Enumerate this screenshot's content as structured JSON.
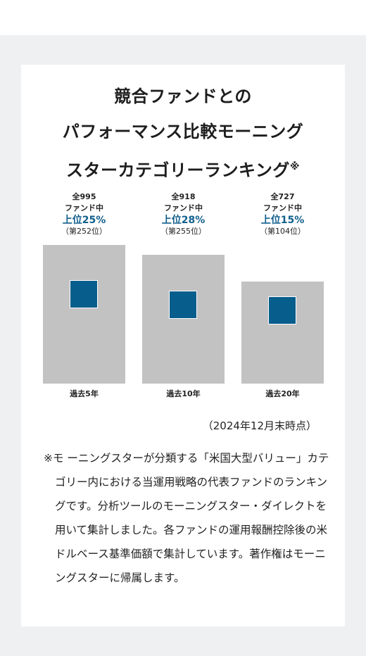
{
  "title_lines": [
    "競合ファンドとの",
    "パフォーマンス比較モーニング",
    "スターカテゴリーランキング"
  ],
  "title_mark": "※",
  "chart_data": {
    "type": "bar",
    "categories": [
      "過去5年",
      "過去10年",
      "過去20年"
    ],
    "headers": [
      {
        "total": "全995",
        "sub": "ファンド中",
        "rank": "上位25%",
        "position": "（第252位）"
      },
      {
        "total": "全918",
        "sub": "ファンド中",
        "rank": "上位28%",
        "position": "（第255位）"
      },
      {
        "total": "全727",
        "sub": "ファンド中",
        "rank": "上位15%",
        "position": "（第104位）"
      }
    ],
    "fund_totals": [
      995,
      918,
      727
    ],
    "rank_positions": [
      252,
      255,
      104
    ],
    "rank_percent": [
      25,
      28,
      15
    ],
    "colors": {
      "bar": "#c2c2c2",
      "marker": "#075d8c",
      "rank_text": "#105f8c"
    }
  },
  "as_of": "（2024年12月末時点）",
  "note": "※モ ーニングスターが分類する「米国大型バリュー」カテゴリー内における当運用戦略の代表ファンドのランキングです。分析ツールのモーニングスター・ダイレクトを用いて集計しました。各ファンドの運用報酬控除後の米ドルベース基準価額で集計しています。著作権はモーニングスターに帰属します。"
}
